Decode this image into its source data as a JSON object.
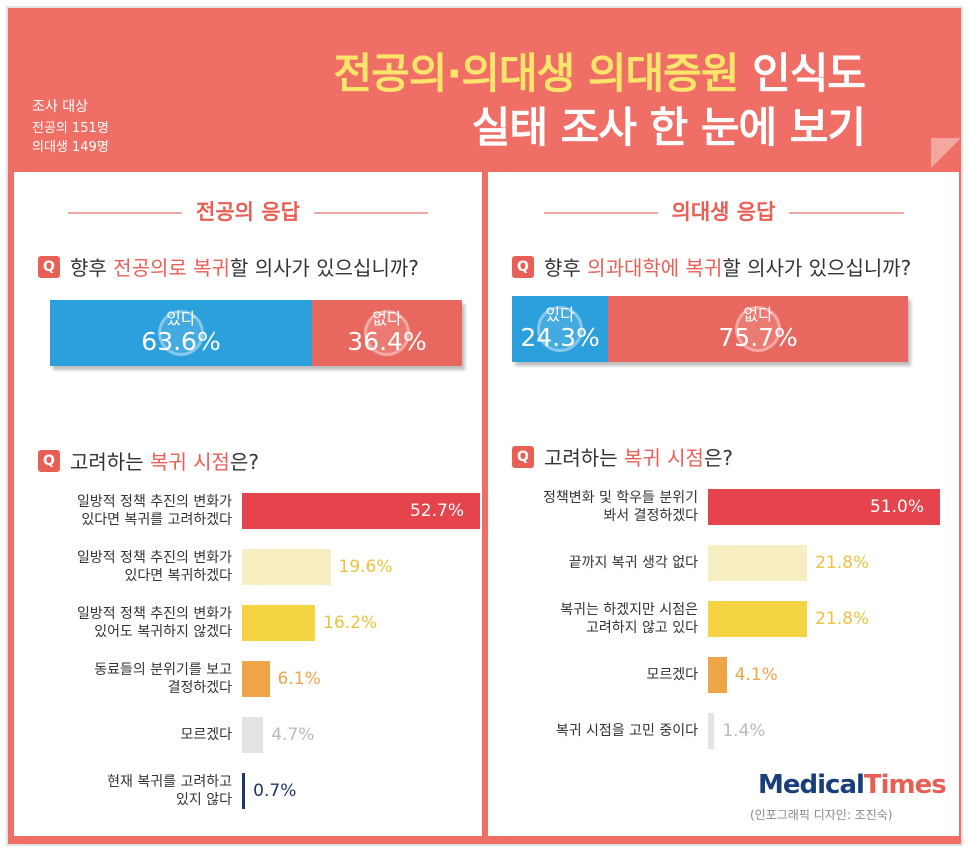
{
  "header": {
    "title_line1_yellow": "전공의·의대생 의대증원",
    "title_line1_white": "인식도",
    "title_line2": "실태 조사 한 눈에 보기",
    "subject_title": "조사 대상",
    "subject_resident": "전공의 151명",
    "subject_student": "의대생 149명"
  },
  "left": {
    "section_title": "전공의 응답",
    "q1": {
      "badge": "Q",
      "pre": "향후 ",
      "highlight": "전공의로 복귀",
      "post": "할 의사가 있으십니까?"
    },
    "q2": {
      "badge": "Q",
      "pre": "고려하는 ",
      "highlight": "복귀 시점",
      "post": "은?"
    }
  },
  "right": {
    "section_title": "의대생 응답",
    "q1": {
      "badge": "Q",
      "pre": "향후 ",
      "highlight": "의과대학에 복귀",
      "post": "할 의사가 있으십니까?"
    },
    "q2": {
      "badge": "Q",
      "pre": "고려하는 ",
      "highlight": "복귀 시점",
      "post": "은?"
    }
  },
  "chart_data": [
    {
      "type": "bar",
      "stacked": true,
      "title": "향후 전공의로 복귀할 의사가 있으십니까?",
      "categories": [
        "있다",
        "없다"
      ],
      "values": [
        63.6,
        36.4
      ],
      "labels": [
        "63.6%",
        "36.4%"
      ],
      "colors": [
        "#2ba0dd",
        "#e8685f"
      ]
    },
    {
      "type": "bar",
      "stacked": true,
      "title": "향후 의과대학에 복귀할 의사가 있으십니까?",
      "categories": [
        "있다",
        "없다"
      ],
      "values": [
        24.3,
        75.7
      ],
      "labels": [
        "24.3%",
        "75.7%"
      ],
      "colors": [
        "#2ba0dd",
        "#e8685f"
      ]
    },
    {
      "type": "bar",
      "orientation": "horizontal",
      "title": "고려하는 복귀 시점은? (전공의)",
      "categories": [
        "일방적 정책 추진의 변화가\n있다면 복귀를 고려하겠다",
        "일방적 정책 추진의 변화가\n있다면 복귀하겠다",
        "일방적 정책 추진의 변화가\n있어도 복귀하지 않겠다",
        "동료들의 분위기를 보고\n결정하겠다",
        "모르겠다",
        "현재 복귀를 고려하고\n있지 않다"
      ],
      "values": [
        52.7,
        19.6,
        16.2,
        6.1,
        4.7,
        0.7
      ],
      "labels": [
        "52.7%",
        "19.6%",
        "16.2%",
        "6.1%",
        "4.7%",
        "0.7%"
      ],
      "colors": [
        "#e5444c",
        "#f7efc2",
        "#f5d443",
        "#eea548",
        "#e3e3e3",
        "#1e3566"
      ],
      "value_colors": [
        "#ffffff",
        "#e9c43e",
        "#e9c43e",
        "#eea548",
        "#bbbbbb",
        "#1e3566"
      ]
    },
    {
      "type": "bar",
      "orientation": "horizontal",
      "title": "고려하는 복귀 시점은? (의대생)",
      "categories": [
        "정책변화 및 학우들 분위기\n봐서 결정하겠다",
        "끝까지 복귀 생각 없다",
        "복귀는 하겠지만 시점은\n고려하지 않고 있다",
        "모르겠다",
        "복귀 시점을 고민 중이다"
      ],
      "values": [
        51.0,
        21.8,
        21.8,
        4.1,
        1.4
      ],
      "labels": [
        "51.0%",
        "21.8%",
        "21.8%",
        "4.1%",
        "1.4%"
      ],
      "colors": [
        "#e5444c",
        "#f7efc2",
        "#f5d443",
        "#eea548",
        "#e3e3e3"
      ],
      "value_colors": [
        "#ffffff",
        "#e9c43e",
        "#e9c43e",
        "#eea548",
        "#bbbbbb"
      ]
    }
  ],
  "footer": {
    "brand_medical": "Medical",
    "brand_times": "Times",
    "credit": "(인포그래픽 디자인: 조진숙)"
  }
}
